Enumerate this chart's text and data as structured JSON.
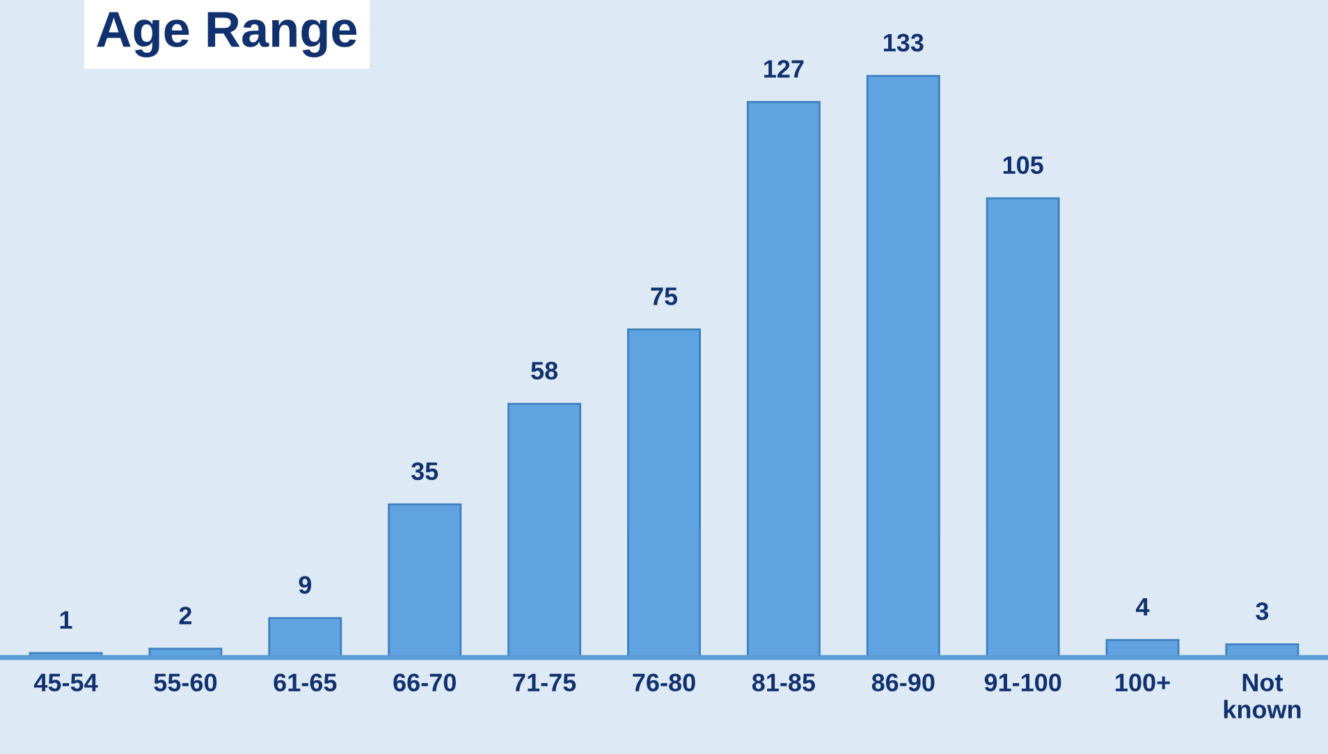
{
  "chart_data": {
    "type": "bar",
    "title": "Age Range",
    "categories": [
      "45-54",
      "55-60",
      "61-65",
      "66-70",
      "71-75",
      "76-80",
      "81-85",
      "86-90",
      "91-100",
      "100+",
      "Not\nknown"
    ],
    "values": [
      1,
      2,
      9,
      35,
      58,
      75,
      127,
      133,
      105,
      4,
      3
    ],
    "color": "#5fa4e0",
    "data_labels": true,
    "grid": false,
    "legend": false
  }
}
